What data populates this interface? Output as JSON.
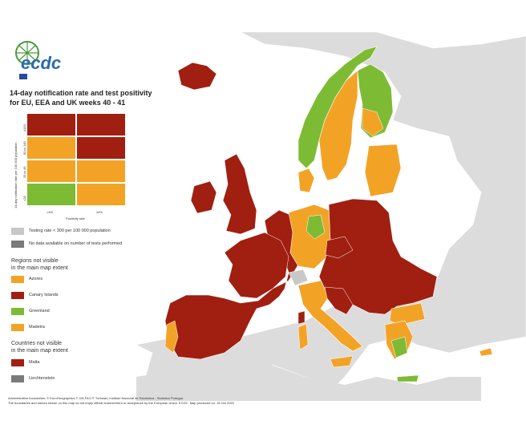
{
  "title": "14-day notification rate and test positivity\nfor EU, EEA and UK weeks 40 - 41",
  "logo": {
    "text": "ecdc"
  },
  "colors": {
    "red": "#a01f10",
    "orange": "#f2a326",
    "green": "#7dbb34",
    "grey_light": "#c8c8c8",
    "grey_dark": "#7a7a7a",
    "sea": "#ffffff",
    "nonEU": "#dcdcdc",
    "border": "#ffffff"
  },
  "matrix": {
    "y_axis_label": "14-day notification rate per 100 000 population",
    "x_axis_label": "Positivity rate",
    "y_ticks": [
      "≥150",
      "50 to 149",
      "25 to 49",
      "<25"
    ],
    "x_ticks": [
      "<4%",
      "≥4%"
    ],
    "cells": [
      [
        "red",
        "red"
      ],
      [
        "orange",
        "red"
      ],
      [
        "orange",
        "orange"
      ],
      [
        "green",
        "orange"
      ]
    ]
  },
  "legend_testing": [
    {
      "color": "grey_light",
      "label": "Testing rate < 300 per 100 000 population"
    },
    {
      "color": "grey_dark",
      "label": "No data available on number of tests performed"
    }
  ],
  "regions_heading": "Regions not visible\nin the main map extent",
  "regions": [
    {
      "color": "orange",
      "label": "Azores"
    },
    {
      "color": "red",
      "label": "Canary Islands"
    },
    {
      "color": "green",
      "label": "Greenland"
    },
    {
      "color": "orange",
      "label": "Madeira"
    }
  ],
  "countries_heading": "Countries not visible\nin the main map extent",
  "countries": [
    {
      "color": "red",
      "label": "Malta"
    },
    {
      "color": "grey_dark",
      "label": "Liechtenstein"
    }
  ],
  "footer": "Administrative boundaries: © EuroGeographics © UN-FAO © Turkstat | Instituto Nacional de Estatística - Statistics Portugal.\nThe boundaries and names shown on this map do not imply official endorsement or acceptance by the European Union. ECDC. Map produced on: 15 Oct 2020"
}
